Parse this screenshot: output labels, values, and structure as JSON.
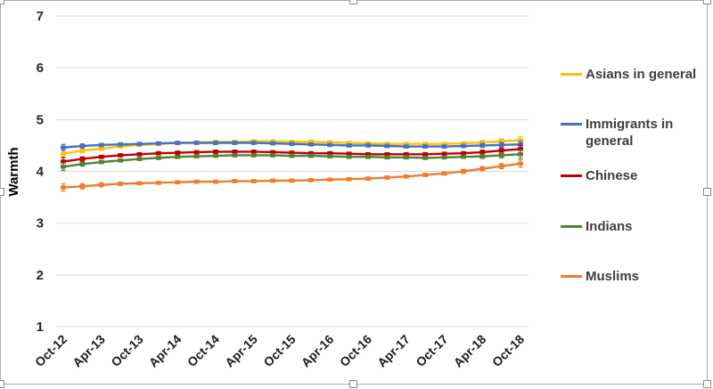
{
  "chart_data": {
    "type": "line",
    "title": "",
    "xlabel": "",
    "ylabel": "Warmth",
    "ylim": [
      1,
      7
    ],
    "yticks": [
      1,
      2,
      3,
      4,
      5,
      6,
      7
    ],
    "grid": "horizontal",
    "legend_position": "right",
    "error_bars": true,
    "x": [
      "Oct-12",
      "Jan-13",
      "Apr-13",
      "Jul-13",
      "Oct-13",
      "Jan-14",
      "Apr-14",
      "Jul-14",
      "Oct-14",
      "Jan-15",
      "Apr-15",
      "Jul-15",
      "Oct-15",
      "Jan-16",
      "Apr-16",
      "Jul-16",
      "Oct-16",
      "Jan-17",
      "Apr-17",
      "Jul-17",
      "Oct-17",
      "Jan-18",
      "Apr-18",
      "Jul-18",
      "Oct-18"
    ],
    "xticklabels": [
      "Oct-12",
      "Apr-13",
      "Oct-13",
      "Apr-14",
      "Oct-14",
      "Apr-15",
      "Oct-15",
      "Apr-16",
      "Oct-16",
      "Apr-17",
      "Oct-17",
      "Apr-18",
      "Oct-18"
    ],
    "series": [
      {
        "name": "Asians in general",
        "color": "#FFC000",
        "values": [
          4.34,
          4.4,
          4.44,
          4.48,
          4.51,
          4.53,
          4.55,
          4.56,
          4.57,
          4.57,
          4.58,
          4.58,
          4.57,
          4.57,
          4.56,
          4.55,
          4.54,
          4.53,
          4.53,
          4.53,
          4.53,
          4.54,
          4.56,
          4.58,
          4.6
        ],
        "errors": [
          0.06,
          0.04,
          0.03,
          0.03,
          0.03,
          0.03,
          0.03,
          0.03,
          0.03,
          0.03,
          0.03,
          0.03,
          0.03,
          0.03,
          0.03,
          0.03,
          0.03,
          0.03,
          0.03,
          0.03,
          0.03,
          0.03,
          0.04,
          0.05,
          0.07
        ]
      },
      {
        "name": "Immigrants in general",
        "color": "#4472C4",
        "values": [
          4.46,
          4.49,
          4.51,
          4.52,
          4.53,
          4.54,
          4.55,
          4.55,
          4.55,
          4.55,
          4.55,
          4.54,
          4.53,
          4.52,
          4.51,
          4.5,
          4.5,
          4.49,
          4.48,
          4.48,
          4.48,
          4.49,
          4.5,
          4.51,
          4.52
        ],
        "errors": [
          0.06,
          0.04,
          0.03,
          0.03,
          0.03,
          0.03,
          0.03,
          0.03,
          0.03,
          0.03,
          0.03,
          0.03,
          0.03,
          0.03,
          0.03,
          0.03,
          0.03,
          0.03,
          0.03,
          0.03,
          0.03,
          0.03,
          0.04,
          0.05,
          0.06
        ]
      },
      {
        "name": "Chinese",
        "color": "#C00000",
        "values": [
          4.19,
          4.24,
          4.28,
          4.31,
          4.33,
          4.35,
          4.36,
          4.37,
          4.38,
          4.38,
          4.38,
          4.37,
          4.36,
          4.35,
          4.35,
          4.34,
          4.33,
          4.33,
          4.33,
          4.33,
          4.34,
          4.35,
          4.37,
          4.4,
          4.43
        ],
        "errors": [
          0.08,
          0.04,
          0.03,
          0.03,
          0.03,
          0.03,
          0.03,
          0.03,
          0.03,
          0.03,
          0.03,
          0.03,
          0.03,
          0.03,
          0.03,
          0.03,
          0.03,
          0.03,
          0.03,
          0.03,
          0.03,
          0.03,
          0.04,
          0.05,
          0.07
        ]
      },
      {
        "name": "Indians",
        "color": "#548235",
        "values": [
          4.09,
          4.14,
          4.18,
          4.21,
          4.24,
          4.26,
          4.28,
          4.29,
          4.3,
          4.31,
          4.31,
          4.31,
          4.3,
          4.3,
          4.29,
          4.28,
          4.28,
          4.27,
          4.27,
          4.26,
          4.27,
          4.28,
          4.29,
          4.31,
          4.33
        ],
        "errors": [
          0.07,
          0.04,
          0.03,
          0.03,
          0.03,
          0.03,
          0.03,
          0.03,
          0.03,
          0.03,
          0.03,
          0.03,
          0.03,
          0.03,
          0.03,
          0.03,
          0.03,
          0.03,
          0.03,
          0.03,
          0.03,
          0.03,
          0.04,
          0.05,
          0.08
        ]
      },
      {
        "name": "Muslims",
        "color": "#ED7D31",
        "values": [
          3.69,
          3.71,
          3.74,
          3.76,
          3.77,
          3.78,
          3.79,
          3.8,
          3.8,
          3.81,
          3.81,
          3.82,
          3.82,
          3.83,
          3.84,
          3.85,
          3.86,
          3.88,
          3.9,
          3.93,
          3.96,
          4.0,
          4.05,
          4.1,
          4.15
        ],
        "errors": [
          0.07,
          0.05,
          0.04,
          0.03,
          0.03,
          0.03,
          0.03,
          0.03,
          0.03,
          0.03,
          0.03,
          0.03,
          0.03,
          0.03,
          0.03,
          0.03,
          0.03,
          0.03,
          0.03,
          0.03,
          0.03,
          0.04,
          0.04,
          0.05,
          0.07
        ]
      }
    ]
  }
}
